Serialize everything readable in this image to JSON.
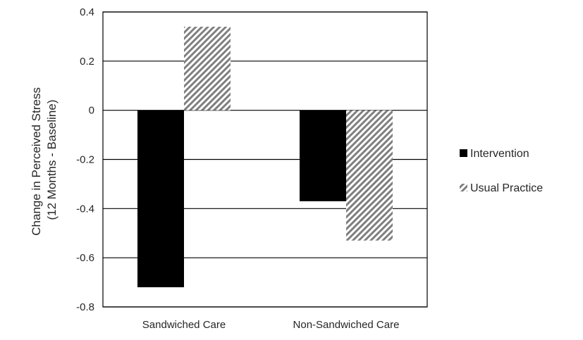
{
  "chart_data": {
    "type": "bar",
    "categories": [
      "Sandwiched Care",
      "Non-Sandwiched Care"
    ],
    "series": [
      {
        "name": "Intervention",
        "values": [
          -0.72,
          -0.37
        ],
        "color": "#000000",
        "pattern": "solid"
      },
      {
        "name": "Usual Practice",
        "values": [
          0.34,
          -0.53
        ],
        "color": "#7f7f7f",
        "pattern": "diagonal-hatch"
      }
    ],
    "title": "",
    "xlabel": "",
    "ylabel_lines": [
      "Change in Perceived Stress",
      "(12 Months - Baseline)"
    ],
    "ylim": [
      -0.8,
      0.4
    ],
    "yticks": [
      0.4,
      0.2,
      0,
      -0.2,
      -0.4,
      -0.6,
      -0.8
    ],
    "ytick_labels": [
      "0.4",
      "0.2",
      "0",
      "-0.2",
      "-0.4",
      "-0.6",
      "-0.8"
    ],
    "grid": true,
    "legend_position": "right"
  }
}
